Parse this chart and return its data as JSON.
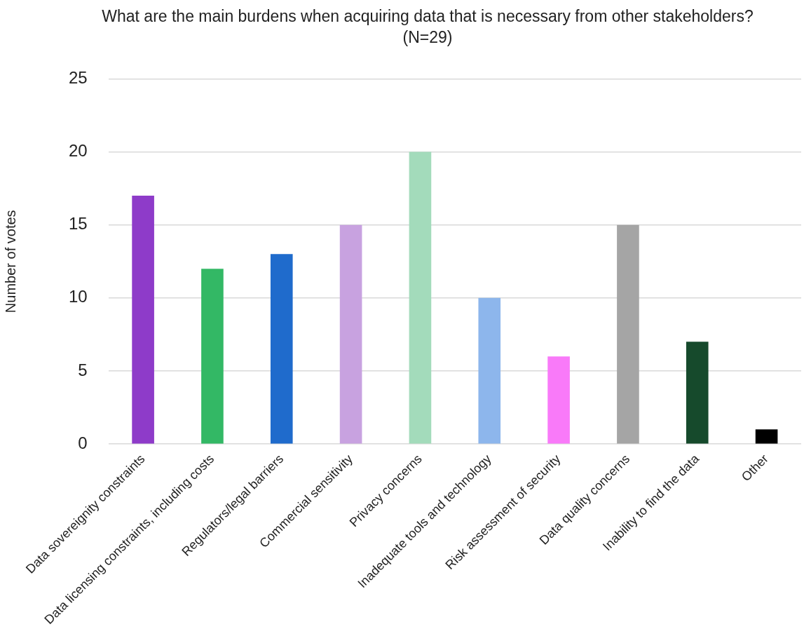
{
  "chart_data": {
    "type": "bar",
    "title": "What are the main burdens when acquiring data that is necessary from other stakeholders? (N=29)",
    "ylabel": "Number of votes",
    "categories": [
      "Data sovereignity constraints",
      "Data licensing constraints, including costs",
      "Regulators/legal barriers",
      "Commercial sensitivity",
      "Privacy concerns",
      "Inadequate tools and technology",
      "Risk assessment of security",
      "Data quality concerns",
      "Inability to find the data",
      "Other"
    ],
    "values": [
      17,
      12,
      13,
      15,
      20,
      10,
      6,
      15,
      7,
      1
    ],
    "colors": [
      "#8e3bc9",
      "#33b865",
      "#1f6bcc",
      "#c8a2e0",
      "#a3dbbb",
      "#8db6ec",
      "#f97af9",
      "#a5a5a5",
      "#164a2c",
      "#000000"
    ],
    "ylim": [
      0,
      25
    ],
    "yticks": [
      0,
      5,
      10,
      15,
      20,
      25
    ],
    "grid": "y",
    "legend": false
  }
}
